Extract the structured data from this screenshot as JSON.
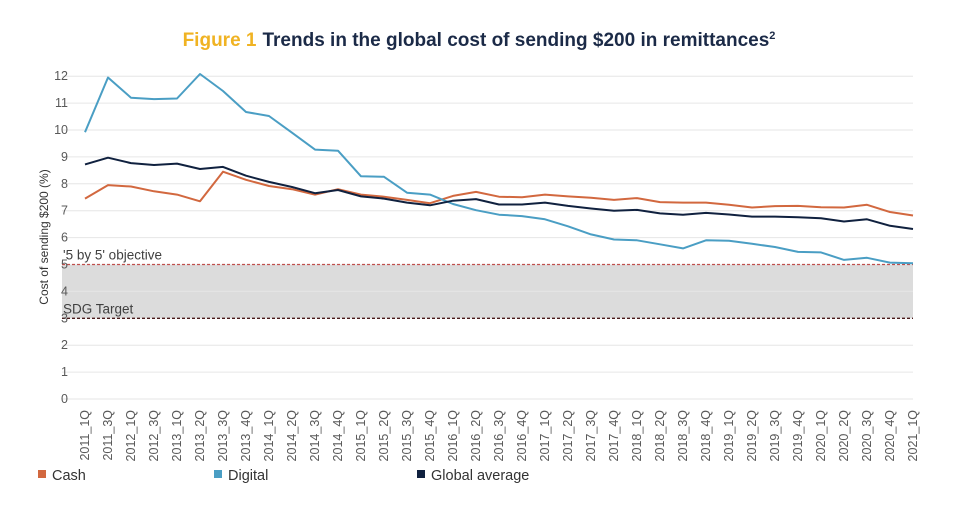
{
  "chart_data": {
    "type": "line",
    "title_prefix": "Figure 1",
    "title": "Trends in the global cost of sending $200 in remittances",
    "title_superscript": "2",
    "ylabel": "Cost of sending $200 (%)",
    "xlabel": "",
    "ylim": [
      0,
      12.5
    ],
    "yticks": [
      0,
      1,
      2,
      3,
      4,
      5,
      6,
      7,
      8,
      9,
      10,
      11,
      12
    ],
    "grid": "horizontal",
    "legend_position": "bottom-left",
    "x": [
      "2011_1Q",
      "2011_3Q",
      "2012_1Q",
      "2012_3Q",
      "2013_1Q",
      "2013_2Q",
      "2013_3Q",
      "2013_4Q",
      "2014_1Q",
      "2014_2Q",
      "2014_3Q",
      "2014_4Q",
      "2015_1Q",
      "2015_2Q",
      "2015_3Q",
      "2015_4Q",
      "2016_1Q",
      "2016_2Q",
      "2016_3Q",
      "2016_4Q",
      "2017_1Q",
      "2017_2Q",
      "2017_3Q",
      "2017_4Q",
      "2018_1Q",
      "2018_2Q",
      "2018_3Q",
      "2018_4Q",
      "2019_1Q",
      "2019_2Q",
      "2019_3Q",
      "2019_4Q",
      "2020_1Q",
      "2020_2Q",
      "2020_3Q",
      "2020_4Q",
      "2021_1Q"
    ],
    "series": [
      {
        "name": "Cash",
        "color": "#d2683f",
        "values": [
          7.45,
          7.95,
          7.9,
          7.72,
          7.6,
          7.35,
          8.45,
          8.15,
          7.92,
          7.8,
          7.6,
          7.8,
          7.6,
          7.52,
          7.4,
          7.28,
          7.55,
          7.7,
          7.52,
          7.5,
          7.6,
          7.53,
          7.48,
          7.4,
          7.47,
          7.32,
          7.3,
          7.3,
          7.22,
          7.12,
          7.17,
          7.18,
          7.13,
          7.12,
          7.22,
          6.95,
          6.82
        ]
      },
      {
        "name": "Digital",
        "color": "#4a9ec4",
        "values": [
          9.92,
          11.95,
          11.2,
          11.15,
          11.17,
          12.08,
          11.45,
          10.67,
          10.52,
          9.9,
          9.27,
          9.23,
          8.28,
          8.26,
          7.67,
          7.6,
          7.25,
          7.02,
          6.85,
          6.8,
          6.68,
          6.42,
          6.12,
          5.93,
          5.9,
          5.75,
          5.6,
          5.9,
          5.88,
          5.77,
          5.65,
          5.47,
          5.45,
          5.17,
          5.25,
          5.07,
          5.05
        ]
      },
      {
        "name": "Global average",
        "color": "#10213f",
        "values": [
          8.72,
          8.97,
          8.77,
          8.7,
          8.75,
          8.55,
          8.63,
          8.3,
          8.07,
          7.88,
          7.65,
          7.77,
          7.53,
          7.45,
          7.3,
          7.2,
          7.37,
          7.43,
          7.23,
          7.23,
          7.3,
          7.18,
          7.08,
          7.0,
          7.03,
          6.9,
          6.85,
          6.92,
          6.86,
          6.78,
          6.78,
          6.76,
          6.72,
          6.6,
          6.68,
          6.44,
          6.32
        ]
      }
    ],
    "reference_lines": [
      {
        "label": "'5 by 5' objective",
        "value": 5,
        "color": "#c0504d"
      },
      {
        "label": "SDG Target",
        "value": 3,
        "color": "#4a1a1a"
      }
    ],
    "shaded_band": {
      "from": 3,
      "to": 5,
      "color": "#dcdcdc"
    }
  }
}
